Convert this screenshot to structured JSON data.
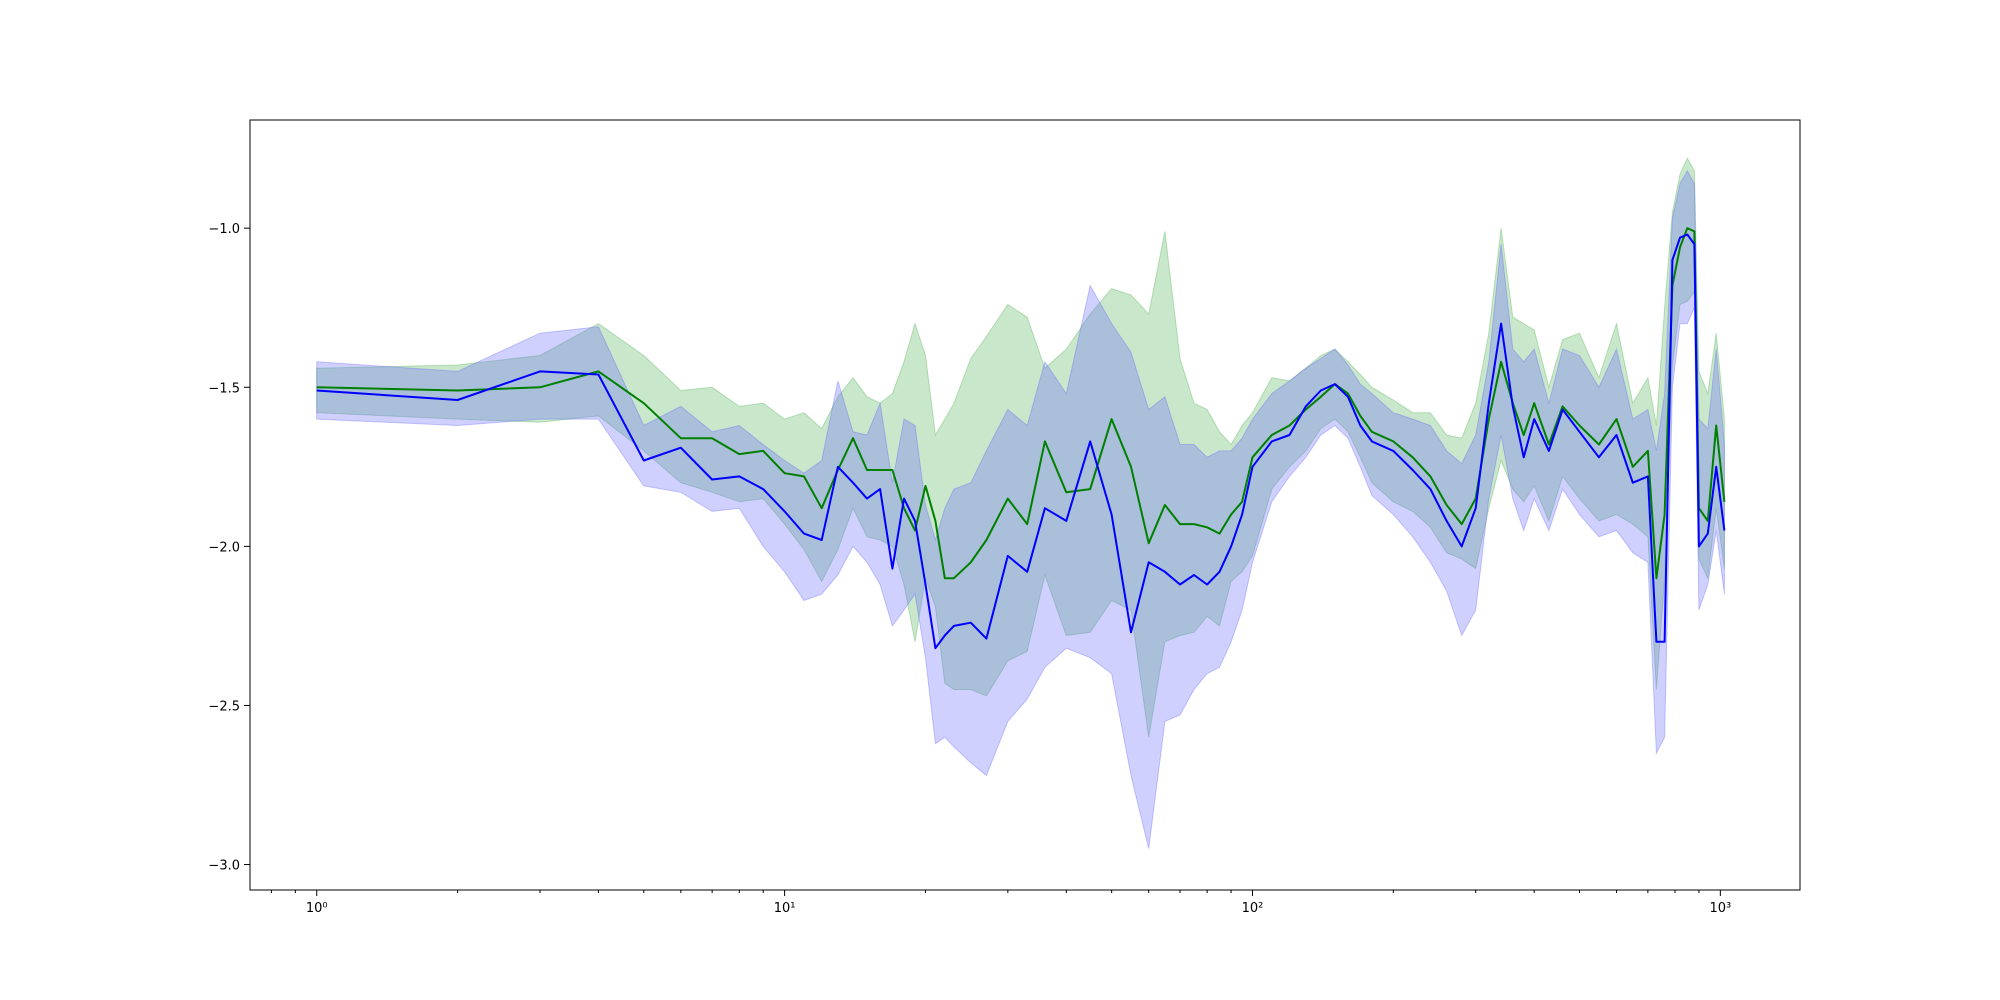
{
  "chart_data": {
    "type": "line",
    "title": "",
    "xlabel": "",
    "ylabel": "",
    "x_scale": "log",
    "xlim": [
      0.72,
      1480
    ],
    "ylim": [
      -3.08,
      -0.66
    ],
    "grid": false,
    "legend": "none",
    "x_ticks": [
      {
        "value": 1,
        "label": "10⁰"
      },
      {
        "value": 10,
        "label": "10¹"
      },
      {
        "value": 100,
        "label": "10²"
      },
      {
        "value": 1000,
        "label": "10³"
      }
    ],
    "y_ticks": [
      {
        "value": -1.0,
        "label": "−1.0"
      },
      {
        "value": -1.5,
        "label": "−1.5"
      },
      {
        "value": -2.0,
        "label": "−2.0"
      },
      {
        "value": -2.5,
        "label": "−2.5"
      },
      {
        "value": -3.0,
        "label": "−3.0"
      }
    ],
    "series": [
      {
        "color": "#008000",
        "band_color": "#4caf50",
        "x": [
          1,
          2,
          3,
          4,
          5,
          6,
          7,
          8,
          9,
          10,
          11,
          12,
          13,
          14,
          15,
          16,
          17,
          18,
          19,
          20,
          21,
          22,
          23,
          25,
          27,
          30,
          33,
          36,
          40,
          45,
          50,
          55,
          60,
          65,
          70,
          75,
          80,
          85,
          90,
          95,
          100,
          110,
          120,
          130,
          140,
          150,
          160,
          170,
          180,
          200,
          220,
          240,
          260,
          280,
          300,
          320,
          340,
          360,
          380,
          400,
          430,
          460,
          500,
          550,
          600,
          650,
          700,
          730,
          760,
          790,
          820,
          850,
          880,
          900,
          940,
          980,
          1020
        ],
        "y": [
          -1.5,
          -1.51,
          -1.5,
          -1.45,
          -1.55,
          -1.66,
          -1.66,
          -1.71,
          -1.7,
          -1.77,
          -1.78,
          -1.88,
          -1.76,
          -1.66,
          -1.76,
          -1.76,
          -1.76,
          -1.88,
          -1.95,
          -1.81,
          -1.92,
          -2.1,
          -2.1,
          -2.05,
          -1.98,
          -1.85,
          -1.93,
          -1.67,
          -1.83,
          -1.82,
          -1.6,
          -1.75,
          -1.99,
          -1.87,
          -1.93,
          -1.93,
          -1.94,
          -1.96,
          -1.9,
          -1.86,
          -1.72,
          -1.65,
          -1.62,
          -1.57,
          -1.53,
          -1.49,
          -1.52,
          -1.59,
          -1.64,
          -1.67,
          -1.72,
          -1.78,
          -1.87,
          -1.93,
          -1.85,
          -1.6,
          -1.42,
          -1.55,
          -1.65,
          -1.55,
          -1.68,
          -1.56,
          -1.62,
          -1.68,
          -1.6,
          -1.75,
          -1.7,
          -2.1,
          -1.9,
          -1.18,
          -1.06,
          -1.0,
          -1.01,
          -1.88,
          -1.92,
          -1.62,
          -1.86
        ],
        "upper": [
          -1.44,
          -1.43,
          -1.4,
          -1.3,
          -1.4,
          -1.51,
          -1.5,
          -1.56,
          -1.55,
          -1.6,
          -1.58,
          -1.63,
          -1.53,
          -1.47,
          -1.53,
          -1.55,
          -1.52,
          -1.42,
          -1.3,
          -1.4,
          -1.65,
          -1.6,
          -1.55,
          -1.41,
          -1.34,
          -1.24,
          -1.28,
          -1.44,
          -1.38,
          -1.27,
          -1.19,
          -1.21,
          -1.27,
          -1.01,
          -1.41,
          -1.55,
          -1.57,
          -1.64,
          -1.68,
          -1.62,
          -1.58,
          -1.47,
          -1.48,
          -1.44,
          -1.4,
          -1.38,
          -1.42,
          -1.46,
          -1.5,
          -1.54,
          -1.58,
          -1.58,
          -1.65,
          -1.66,
          -1.55,
          -1.33,
          -1.0,
          -1.28,
          -1.3,
          -1.32,
          -1.5,
          -1.35,
          -1.33,
          -1.47,
          -1.3,
          -1.55,
          -1.47,
          -1.62,
          -1.25,
          -0.95,
          -0.83,
          -0.78,
          -0.82,
          -1.45,
          -1.52,
          -1.33,
          -1.6
        ],
        "lower": [
          -1.58,
          -1.6,
          -1.61,
          -1.59,
          -1.7,
          -1.8,
          -1.83,
          -1.86,
          -1.85,
          -1.93,
          -2.01,
          -2.11,
          -2.01,
          -1.88,
          -1.97,
          -1.98,
          -2.0,
          -2.12,
          -2.3,
          -2.1,
          -2.19,
          -2.43,
          -2.45,
          -2.45,
          -2.47,
          -2.36,
          -2.33,
          -2.09,
          -2.28,
          -2.27,
          -2.17,
          -2.2,
          -2.6,
          -2.3,
          -2.28,
          -2.27,
          -2.22,
          -2.25,
          -2.11,
          -2.08,
          -2.03,
          -1.82,
          -1.75,
          -1.7,
          -1.63,
          -1.6,
          -1.64,
          -1.72,
          -1.8,
          -1.86,
          -1.89,
          -1.94,
          -2.02,
          -2.04,
          -2.07,
          -1.88,
          -1.73,
          -1.82,
          -1.86,
          -1.81,
          -1.92,
          -1.78,
          -1.85,
          -1.92,
          -1.9,
          -1.93,
          -1.97,
          -2.45,
          -2.1,
          -1.43,
          -1.24,
          -1.23,
          -1.2,
          -2.04,
          -2.1,
          -1.88,
          -2.07
        ]
      },
      {
        "color": "#0000ff",
        "band_color": "#6464ff",
        "x": [
          1,
          2,
          3,
          4,
          5,
          6,
          7,
          8,
          9,
          10,
          11,
          12,
          13,
          14,
          15,
          16,
          17,
          18,
          19,
          20,
          21,
          22,
          23,
          25,
          27,
          30,
          33,
          36,
          40,
          45,
          50,
          55,
          60,
          65,
          70,
          75,
          80,
          85,
          90,
          95,
          100,
          110,
          120,
          130,
          140,
          150,
          160,
          170,
          180,
          200,
          220,
          240,
          260,
          280,
          300,
          320,
          340,
          360,
          380,
          400,
          430,
          460,
          500,
          550,
          600,
          650,
          700,
          730,
          760,
          790,
          820,
          850,
          880,
          900,
          940,
          980,
          1020
        ],
        "y": [
          -1.51,
          -1.54,
          -1.45,
          -1.46,
          -1.73,
          -1.69,
          -1.79,
          -1.78,
          -1.82,
          -1.89,
          -1.96,
          -1.98,
          -1.75,
          -1.8,
          -1.85,
          -1.82,
          -2.07,
          -1.85,
          -1.92,
          -2.12,
          -2.32,
          -2.28,
          -2.25,
          -2.24,
          -2.29,
          -2.03,
          -2.08,
          -1.88,
          -1.92,
          -1.67,
          -1.9,
          -2.27,
          -2.05,
          -2.08,
          -2.12,
          -2.09,
          -2.12,
          -2.08,
          -2.0,
          -1.9,
          -1.75,
          -1.67,
          -1.65,
          -1.56,
          -1.51,
          -1.49,
          -1.53,
          -1.62,
          -1.67,
          -1.7,
          -1.76,
          -1.82,
          -1.92,
          -2.0,
          -1.88,
          -1.55,
          -1.3,
          -1.56,
          -1.72,
          -1.6,
          -1.7,
          -1.57,
          -1.64,
          -1.72,
          -1.65,
          -1.8,
          -1.78,
          -2.3,
          -2.3,
          -1.1,
          -1.03,
          -1.02,
          -1.05,
          -2.0,
          -1.96,
          -1.75,
          -1.95
        ],
        "upper": [
          -1.42,
          -1.45,
          -1.33,
          -1.31,
          -1.62,
          -1.56,
          -1.64,
          -1.62,
          -1.68,
          -1.73,
          -1.77,
          -1.73,
          -1.48,
          -1.64,
          -1.65,
          -1.55,
          -1.8,
          -1.6,
          -1.62,
          -1.87,
          -1.98,
          -1.88,
          -1.82,
          -1.8,
          -1.7,
          -1.57,
          -1.62,
          -1.42,
          -1.52,
          -1.18,
          -1.3,
          -1.39,
          -1.57,
          -1.53,
          -1.68,
          -1.68,
          -1.72,
          -1.7,
          -1.7,
          -1.66,
          -1.6,
          -1.52,
          -1.48,
          -1.44,
          -1.41,
          -1.38,
          -1.43,
          -1.49,
          -1.52,
          -1.58,
          -1.6,
          -1.62,
          -1.7,
          -1.74,
          -1.65,
          -1.42,
          -1.05,
          -1.38,
          -1.42,
          -1.38,
          -1.55,
          -1.38,
          -1.4,
          -1.5,
          -1.38,
          -1.6,
          -1.57,
          -1.7,
          -1.52,
          -0.97,
          -0.86,
          -0.82,
          -0.86,
          -1.6,
          -1.63,
          -1.38,
          -1.68
        ],
        "lower": [
          -1.6,
          -1.62,
          -1.6,
          -1.6,
          -1.81,
          -1.83,
          -1.89,
          -1.88,
          -2.0,
          -2.08,
          -2.17,
          -2.15,
          -2.09,
          -2.0,
          -2.05,
          -2.12,
          -2.25,
          -2.2,
          -2.15,
          -2.35,
          -2.62,
          -2.6,
          -2.63,
          -2.68,
          -2.72,
          -2.55,
          -2.48,
          -2.38,
          -2.32,
          -2.35,
          -2.4,
          -2.72,
          -2.95,
          -2.55,
          -2.53,
          -2.45,
          -2.4,
          -2.38,
          -2.3,
          -2.2,
          -2.05,
          -1.86,
          -1.78,
          -1.72,
          -1.65,
          -1.62,
          -1.66,
          -1.75,
          -1.84,
          -1.9,
          -1.97,
          -2.05,
          -2.14,
          -2.28,
          -2.2,
          -1.85,
          -1.65,
          -1.85,
          -1.95,
          -1.85,
          -1.95,
          -1.82,
          -1.9,
          -1.97,
          -1.95,
          -2.02,
          -2.05,
          -2.65,
          -2.6,
          -1.5,
          -1.3,
          -1.3,
          -1.25,
          -2.2,
          -2.12,
          -1.95,
          -2.15
        ]
      }
    ]
  }
}
